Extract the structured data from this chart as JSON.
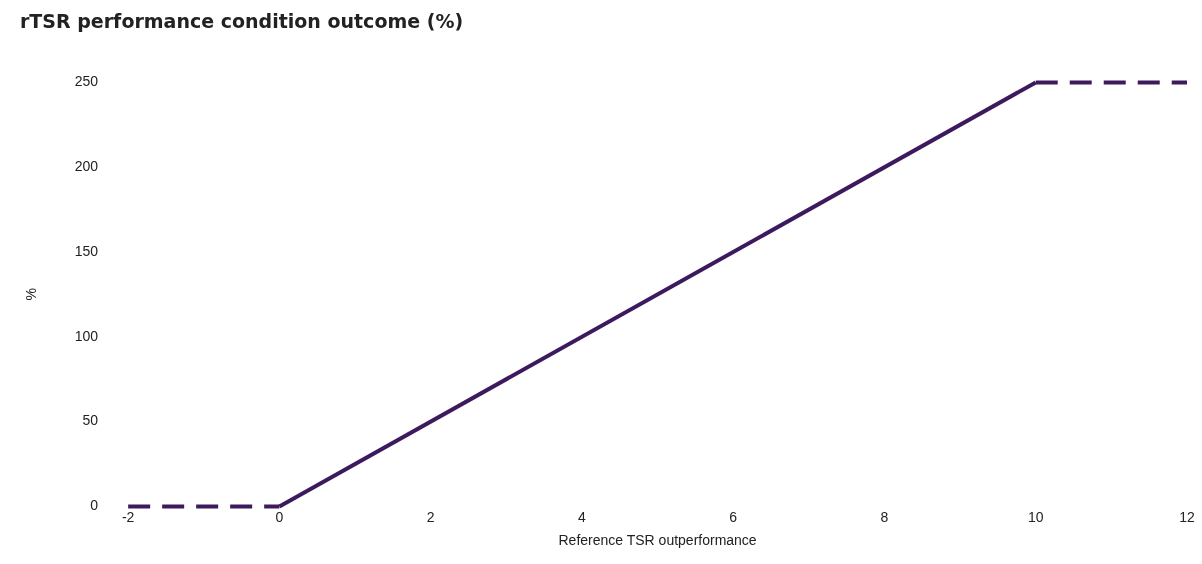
{
  "chart_data": {
    "type": "line",
    "title": "rTSR performance condition outcome (%)",
    "xlabel": "Reference TSR outperformance",
    "ylabel": "%",
    "xlim": [
      -2,
      12
    ],
    "xticks": [
      -2,
      0,
      2,
      4,
      6,
      8,
      10,
      12
    ],
    "ylim": [
      0,
      250
    ],
    "yticks": [
      0,
      50,
      100,
      150,
      200,
      250
    ],
    "grid": false,
    "legend": false,
    "marker": "none",
    "series": [
      {
        "color": "#3d1a5e",
        "x": [
          -2,
          0
        ],
        "values": [
          0,
          0
        ],
        "line_style": "dashed"
      },
      {
        "color": "#3d1a5e",
        "x": [
          0,
          10
        ],
        "values": [
          0,
          250
        ],
        "line_style": "solid"
      },
      {
        "color": "#3d1a5e",
        "x": [
          10,
          12
        ],
        "values": [
          250,
          250
        ],
        "line_style": "dashed"
      }
    ]
  }
}
